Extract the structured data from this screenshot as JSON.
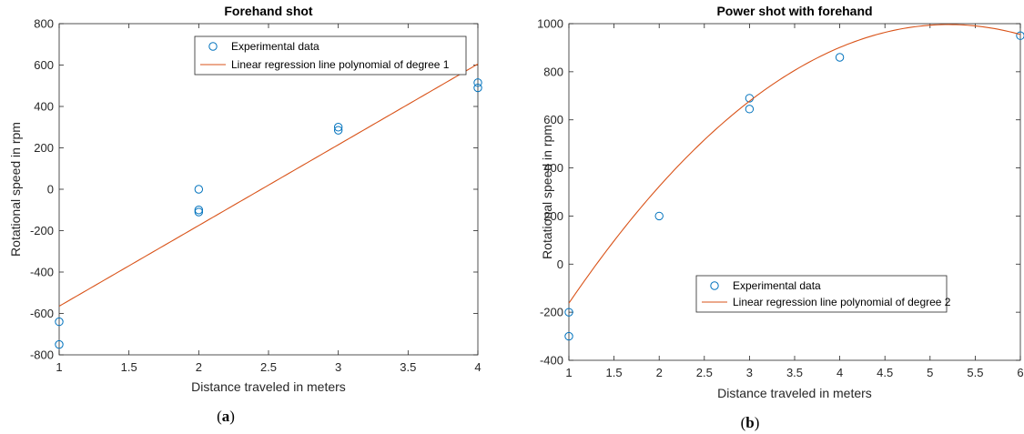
{
  "colors": {
    "marker": "#0072BD",
    "fit": "#D95319",
    "axis": "#262626"
  },
  "chart_data": [
    {
      "type": "scatter",
      "title": "Forehand shot",
      "xlabel": "Distance traveled in meters",
      "ylabel": "Rotational speed in rpm",
      "caption_open": "(",
      "caption_letter": "a",
      "caption_close": ")",
      "xlim": [
        1,
        4
      ],
      "ylim": [
        -800,
        800
      ],
      "xticks": [
        1,
        1.5,
        2,
        2.5,
        3,
        3.5,
        4
      ],
      "yticks": [
        -800,
        -600,
        -400,
        -200,
        0,
        200,
        400,
        600,
        800
      ],
      "legend_position": "top-right",
      "grid": false,
      "series": [
        {
          "name": "Experimental data",
          "kind": "markers",
          "x": [
            1,
            1,
            2,
            2,
            2,
            3,
            3,
            4,
            4
          ],
          "y": [
            -640,
            -750,
            0,
            -100,
            -110,
            300,
            285,
            515,
            490
          ]
        },
        {
          "name": "Linear regression line polynomial of degree 1",
          "kind": "polyfit",
          "degree": 1,
          "coefficients": [
            -955,
            390
          ]
        }
      ]
    },
    {
      "type": "scatter",
      "title": "Power shot with forehand",
      "xlabel": "Distance traveled in meters",
      "ylabel": "Rotational speed in rpm",
      "caption_open": "(",
      "caption_letter": "b",
      "caption_close": ")",
      "xlim": [
        1,
        6
      ],
      "ylim": [
        -400,
        1000
      ],
      "xticks": [
        1,
        1.5,
        2,
        2.5,
        3,
        3.5,
        4,
        4.5,
        5,
        5.5,
        6
      ],
      "yticks": [
        -400,
        -200,
        0,
        200,
        400,
        600,
        800,
        1000
      ],
      "legend_position": "bottom-right",
      "grid": false,
      "series": [
        {
          "name": "Experimental data",
          "kind": "markers",
          "x": [
            1,
            1,
            2,
            3,
            3,
            4,
            6
          ],
          "y": [
            -200,
            -300,
            200,
            690,
            645,
            860,
            950
          ]
        },
        {
          "name": "Linear regression line polynomial of degree 2",
          "kind": "polyfit",
          "degree": 2,
          "coefficients": [
            -779,
            682,
            -65.5
          ]
        }
      ]
    }
  ]
}
